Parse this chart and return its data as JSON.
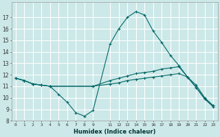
{
  "xlabel": "Humidex (Indice chaleur)",
  "bg_color": "#cce8e8",
  "grid_color": "#ffffff",
  "line_color": "#006666",
  "ylim": [
    8,
    18
  ],
  "xlim": [
    -0.5,
    23.5
  ],
  "yticks": [
    8,
    9,
    10,
    11,
    12,
    13,
    14,
    15,
    16,
    17
  ],
  "xticks": [
    0,
    1,
    2,
    3,
    4,
    5,
    6,
    7,
    8,
    9,
    11,
    12,
    13,
    14,
    15,
    16,
    17,
    18,
    19,
    20,
    21,
    22,
    23
  ],
  "xtick_labels": [
    "0",
    "1",
    "2",
    "3",
    "4",
    "5",
    "6",
    "7",
    "8",
    "9",
    "11",
    "12",
    "13",
    "14",
    "15",
    "16",
    "17",
    "18",
    "19",
    "20",
    "21",
    "22",
    "23"
  ],
  "curve1_x": [
    0,
    1,
    2,
    3,
    4,
    5,
    6,
    7,
    8,
    9,
    11,
    12,
    13,
    14,
    15,
    16,
    17,
    18,
    19,
    20,
    21,
    22,
    23
  ],
  "curve1_y": [
    11.7,
    11.5,
    11.2,
    11.1,
    11.0,
    10.3,
    9.6,
    8.7,
    8.4,
    8.9,
    14.7,
    16.0,
    17.0,
    17.5,
    17.2,
    15.8,
    14.8,
    13.7,
    12.8,
    11.8,
    10.9,
    9.9,
    9.2
  ],
  "curve2_x": [
    0,
    1,
    2,
    3,
    4,
    9,
    11,
    12,
    13,
    14,
    15,
    16,
    17,
    18,
    19,
    20,
    21,
    22,
    23
  ],
  "curve2_y": [
    11.7,
    11.5,
    11.2,
    11.1,
    11.0,
    11.0,
    11.5,
    11.7,
    11.9,
    12.1,
    12.2,
    12.3,
    12.5,
    12.6,
    12.7,
    11.8,
    11.1,
    10.0,
    9.3
  ],
  "curve3_x": [
    0,
    1,
    2,
    3,
    4,
    9,
    11,
    12,
    13,
    14,
    15,
    16,
    17,
    18,
    19,
    20,
    21,
    22,
    23
  ],
  "curve3_y": [
    11.7,
    11.5,
    11.2,
    11.1,
    11.0,
    11.0,
    11.2,
    11.3,
    11.5,
    11.6,
    11.7,
    11.8,
    11.9,
    12.0,
    12.1,
    11.8,
    10.9,
    9.9,
    9.3
  ]
}
